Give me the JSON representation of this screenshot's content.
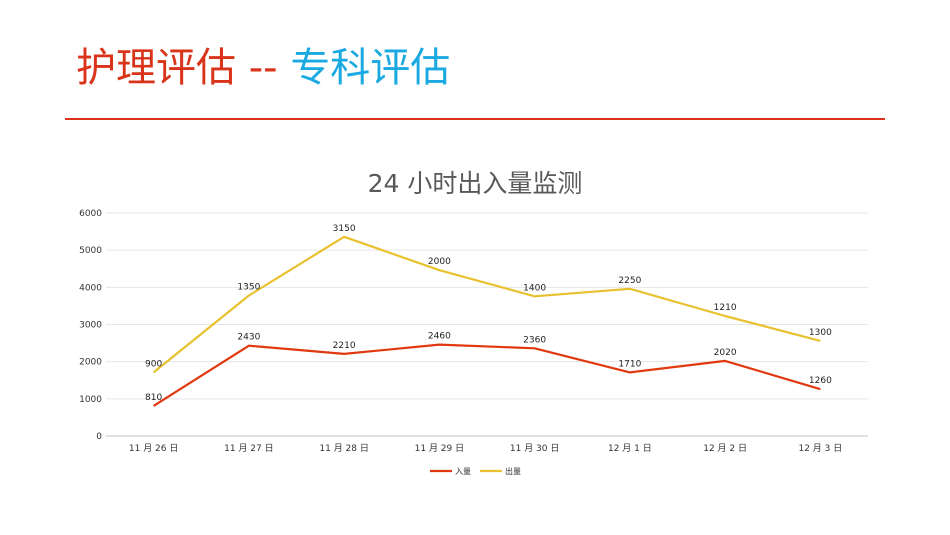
{
  "slide": {
    "title_main": "护理评估",
    "title_sep": "--",
    "title_sub": "专科评估",
    "colors": {
      "title_main": "#d9341a",
      "title_sub": "#1aa9e0",
      "rule": "#d9341a"
    }
  },
  "chart_data": {
    "type": "line",
    "title": "24 小时出入量监测",
    "xlabel": "",
    "ylabel": "",
    "categories": [
      "11 月 26 日",
      "11 月 27 日",
      "11 月 28 日",
      "11 月 29 日",
      "11 月 30 日",
      "12 月 1 日",
      "12 月 2 日",
      "12 月 3 日"
    ],
    "yticks": [
      0,
      1000,
      2000,
      3000,
      4000,
      5000,
      6000
    ],
    "ylim": [
      0,
      6000
    ],
    "stacked": true,
    "grid": true,
    "legend_position": "bottom",
    "series": [
      {
        "name": "入量",
        "color": "#e0380f",
        "values": [
          810,
          2430,
          2210,
          2460,
          2360,
          1710,
          2020,
          1260
        ],
        "labels": [
          "810",
          "2430",
          "2210",
          "2460",
          "2360",
          "1710",
          "2020",
          "1260"
        ]
      },
      {
        "name": "出量",
        "color": "#e8c12e",
        "values": [
          900,
          1350,
          3150,
          2000,
          1400,
          2250,
          1210,
          1300
        ],
        "labels": [
          "900",
          "1350",
          "3150",
          "2000",
          "1400",
          "2250",
          "1210",
          "1300"
        ]
      }
    ]
  }
}
